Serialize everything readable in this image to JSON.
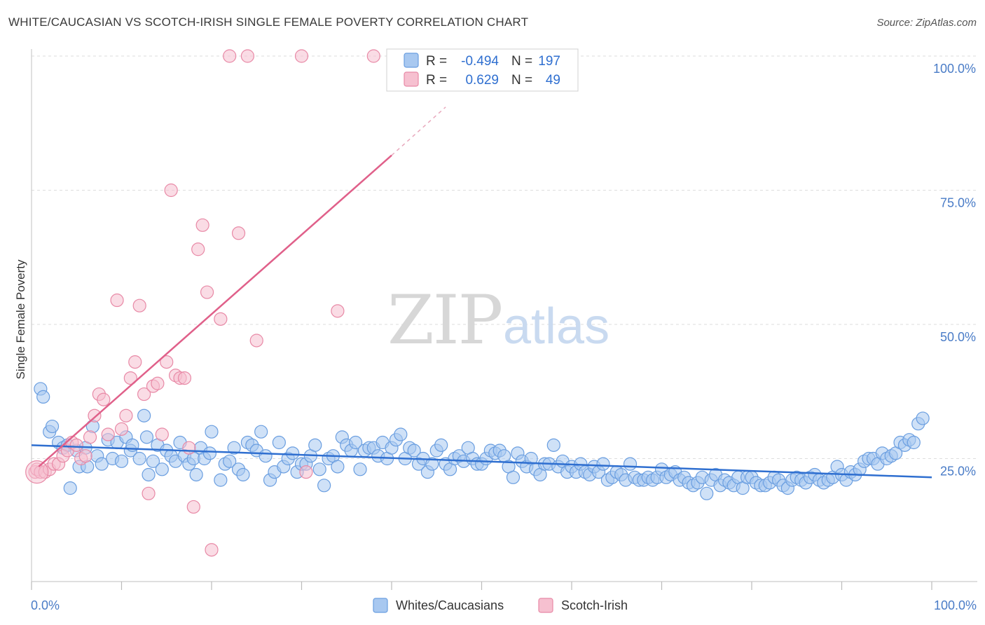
{
  "title": "WHITE/CAUCASIAN VS SCOTCH-IRISH SINGLE FEMALE POVERTY CORRELATION CHART",
  "source": "Source: ZipAtlas.com",
  "watermark": {
    "zip": "ZIP",
    "atlas": "atlas"
  },
  "chart_data": {
    "type": "scatter",
    "xlabel": "",
    "ylabel": "Single Female Poverty",
    "xlim": [
      0,
      100
    ],
    "ylim": [
      0,
      100
    ],
    "x_tick_labels": {
      "left": "0.0%",
      "right": "100.0%"
    },
    "y_tick_labels": [
      {
        "value": 25,
        "label": "25.0%"
      },
      {
        "value": 50,
        "label": "50.0%"
      },
      {
        "value": 75,
        "label": "75.0%"
      },
      {
        "value": 100,
        "label": "100.0%"
      }
    ],
    "legend": {
      "placement": "top-center",
      "entries": [
        {
          "r_label": "R =",
          "r_value": "-0.494",
          "n_label": "N =",
          "n_value": "197"
        },
        {
          "r_label": "R =",
          "r_value": "0.629",
          "n_label": "N =",
          "n_value": "49"
        }
      ]
    },
    "series": [
      {
        "name": "Whites/Caucasians",
        "color": "#6a9ee0",
        "fill": "#a8c8f0",
        "trend": {
          "x0": 0,
          "y0": 27.5,
          "x1": 100,
          "y1": 21.5
        },
        "points": [
          [
            1,
            38
          ],
          [
            1.3,
            36.5
          ],
          [
            2,
            30
          ],
          [
            2.3,
            31
          ],
          [
            3,
            28
          ],
          [
            3.5,
            27
          ],
          [
            4,
            27.5
          ],
          [
            4.3,
            19.5
          ],
          [
            5,
            26.5
          ],
          [
            5.3,
            23.5
          ],
          [
            6,
            27
          ],
          [
            6.2,
            23.5
          ],
          [
            6.8,
            31
          ],
          [
            7.3,
            25.5
          ],
          [
            7.8,
            24
          ],
          [
            8.5,
            28.5
          ],
          [
            9,
            25
          ],
          [
            9.5,
            28
          ],
          [
            10,
            24.5
          ],
          [
            10.5,
            29
          ],
          [
            11,
            26.5
          ],
          [
            11.2,
            27.5
          ],
          [
            12,
            25
          ],
          [
            12.5,
            33
          ],
          [
            12.8,
            29
          ],
          [
            13,
            22
          ],
          [
            13.5,
            24.5
          ],
          [
            14,
            27.5
          ],
          [
            14.5,
            23
          ],
          [
            15,
            26.5
          ],
          [
            15.5,
            25.5
          ],
          [
            16,
            24.5
          ],
          [
            16.5,
            28
          ],
          [
            17,
            25.5
          ],
          [
            17.5,
            24
          ],
          [
            18,
            25
          ],
          [
            18.3,
            22
          ],
          [
            18.8,
            27
          ],
          [
            19.2,
            25
          ],
          [
            19.8,
            26
          ],
          [
            20,
            30
          ],
          [
            21,
            21
          ],
          [
            21.5,
            24
          ],
          [
            22,
            24.5
          ],
          [
            22.5,
            27
          ],
          [
            23,
            23
          ],
          [
            23.5,
            22
          ],
          [
            24,
            28
          ],
          [
            24.5,
            27.5
          ],
          [
            25,
            26.5
          ],
          [
            25.5,
            30
          ],
          [
            26,
            25.5
          ],
          [
            26.5,
            21
          ],
          [
            27,
            22.5
          ],
          [
            27.5,
            28
          ],
          [
            28,
            23.5
          ],
          [
            28.5,
            25
          ],
          [
            29,
            26
          ],
          [
            29.5,
            22.5
          ],
          [
            30,
            24
          ],
          [
            30.5,
            24
          ],
          [
            31,
            25.5
          ],
          [
            31.5,
            27.5
          ],
          [
            32,
            23
          ],
          [
            32.5,
            20
          ],
          [
            33,
            25
          ],
          [
            33.5,
            25.5
          ],
          [
            34,
            23.5
          ],
          [
            34.5,
            29
          ],
          [
            35,
            27.5
          ],
          [
            35.5,
            26.5
          ],
          [
            36,
            28
          ],
          [
            36.5,
            23
          ],
          [
            37,
            26.5
          ],
          [
            37.5,
            27
          ],
          [
            38,
            27
          ],
          [
            38.5,
            25.5
          ],
          [
            39,
            28
          ],
          [
            39.5,
            25
          ],
          [
            40,
            27
          ],
          [
            40.5,
            28.5
          ],
          [
            41,
            29.5
          ],
          [
            41.5,
            25
          ],
          [
            42,
            27
          ],
          [
            42.5,
            26.5
          ],
          [
            43,
            24
          ],
          [
            43.5,
            25
          ],
          [
            44,
            22.5
          ],
          [
            44.5,
            24
          ],
          [
            45,
            26.5
          ],
          [
            45.5,
            27.5
          ],
          [
            46,
            24
          ],
          [
            46.5,
            23
          ],
          [
            47,
            25
          ],
          [
            47.5,
            25.5
          ],
          [
            48,
            24.5
          ],
          [
            48.5,
            27
          ],
          [
            49,
            25
          ],
          [
            49.5,
            24
          ],
          [
            50,
            24
          ],
          [
            50.5,
            25
          ],
          [
            51,
            26.5
          ],
          [
            51.5,
            26
          ],
          [
            52,
            26.5
          ],
          [
            52.5,
            25.5
          ],
          [
            53,
            23.5
          ],
          [
            53.5,
            21.5
          ],
          [
            54,
            26
          ],
          [
            54.5,
            24.5
          ],
          [
            55,
            23.5
          ],
          [
            55.5,
            25
          ],
          [
            56,
            23
          ],
          [
            56.5,
            22
          ],
          [
            57,
            24
          ],
          [
            57.5,
            24
          ],
          [
            58,
            27.5
          ],
          [
            58.5,
            23.5
          ],
          [
            59,
            24.5
          ],
          [
            59.5,
            22.5
          ],
          [
            60,
            23.5
          ],
          [
            60.5,
            22.5
          ],
          [
            61,
            24
          ],
          [
            61.5,
            22.5
          ],
          [
            62,
            22
          ],
          [
            62.5,
            23.5
          ],
          [
            63,
            22.5
          ],
          [
            63.5,
            24
          ],
          [
            64,
            21
          ],
          [
            64.5,
            21.5
          ],
          [
            65,
            22.5
          ],
          [
            65.5,
            22
          ],
          [
            66,
            21
          ],
          [
            66.5,
            24
          ],
          [
            67,
            21.5
          ],
          [
            67.5,
            21
          ],
          [
            68,
            21
          ],
          [
            68.5,
            21.5
          ],
          [
            69,
            21
          ],
          [
            69.5,
            21.5
          ],
          [
            70,
            23
          ],
          [
            70.5,
            21.5
          ],
          [
            71,
            22
          ],
          [
            71.5,
            22.5
          ],
          [
            72,
            21
          ],
          [
            72.5,
            21.5
          ],
          [
            73,
            20.5
          ],
          [
            73.5,
            20
          ],
          [
            74,
            20.5
          ],
          [
            74.5,
            21.5
          ],
          [
            75,
            18.5
          ],
          [
            75.5,
            21
          ],
          [
            76,
            22
          ],
          [
            76.5,
            20
          ],
          [
            77,
            21
          ],
          [
            77.5,
            20.5
          ],
          [
            78,
            20
          ],
          [
            78.5,
            21.5
          ],
          [
            79,
            19.5
          ],
          [
            79.5,
            21.5
          ],
          [
            80,
            21.5
          ],
          [
            80.5,
            20.5
          ],
          [
            81,
            20
          ],
          [
            81.5,
            20
          ],
          [
            82,
            20.5
          ],
          [
            82.5,
            21.5
          ],
          [
            83,
            21
          ],
          [
            83.5,
            20
          ],
          [
            84,
            19.5
          ],
          [
            84.5,
            21
          ],
          [
            85,
            21.5
          ],
          [
            85.5,
            21
          ],
          [
            86,
            20.5
          ],
          [
            86.5,
            21.5
          ],
          [
            87,
            22
          ],
          [
            87.5,
            21
          ],
          [
            88,
            20.5
          ],
          [
            88.5,
            21
          ],
          [
            89,
            21.5
          ],
          [
            89.5,
            23.5
          ],
          [
            90,
            22
          ],
          [
            90.5,
            21
          ],
          [
            91,
            22.5
          ],
          [
            91.5,
            22
          ],
          [
            92,
            23
          ],
          [
            92.5,
            24.5
          ],
          [
            93,
            25
          ],
          [
            93.5,
            25
          ],
          [
            94,
            24
          ],
          [
            94.5,
            26
          ],
          [
            95,
            25
          ],
          [
            95.5,
            25.5
          ],
          [
            96,
            26
          ],
          [
            96.5,
            28
          ],
          [
            97,
            27.5
          ],
          [
            97.5,
            28.5
          ],
          [
            98,
            28
          ],
          [
            98.5,
            31.5
          ],
          [
            99,
            32.5
          ]
        ]
      },
      {
        "name": "Scotch-Irish",
        "color": "#e889a6",
        "fill": "#f6c0d0",
        "trend": {
          "x0": 0.8,
          "y0": 23.5,
          "x1": 40,
          "y1": 81.5
        },
        "trend_dashed_to": {
          "x": 46,
          "y": 90.5
        },
        "points": [
          [
            0.4,
            22.5
          ],
          [
            0.6,
            23
          ],
          [
            1,
            22.5
          ],
          [
            1.5,
            22.5
          ],
          [
            2,
            23
          ],
          [
            2.5,
            24
          ],
          [
            3,
            24
          ],
          [
            3.5,
            25.5
          ],
          [
            4,
            26.5
          ],
          [
            4.5,
            28
          ],
          [
            5,
            27.5
          ],
          [
            5.5,
            25
          ],
          [
            6,
            25.5
          ],
          [
            6.5,
            29
          ],
          [
            7,
            33
          ],
          [
            7.5,
            37
          ],
          [
            8,
            36
          ],
          [
            8.5,
            29.5
          ],
          [
            9.5,
            54.5
          ],
          [
            10,
            30.5
          ],
          [
            10.5,
            33
          ],
          [
            11,
            40
          ],
          [
            11.5,
            43
          ],
          [
            12,
            53.5
          ],
          [
            12.5,
            37
          ],
          [
            13,
            18.5
          ],
          [
            13.5,
            38.5
          ],
          [
            14,
            39
          ],
          [
            14.5,
            29.5
          ],
          [
            15,
            43
          ],
          [
            15.5,
            75
          ],
          [
            16,
            40.5
          ],
          [
            16.5,
            40
          ],
          [
            17,
            40
          ],
          [
            17.5,
            27
          ],
          [
            18,
            16
          ],
          [
            18.5,
            64
          ],
          [
            19,
            68.5
          ],
          [
            19.5,
            56
          ],
          [
            20,
            8
          ],
          [
            21,
            51
          ],
          [
            22,
            100
          ],
          [
            23,
            67
          ],
          [
            24,
            100
          ],
          [
            25,
            47
          ],
          [
            30,
            100
          ],
          [
            30.5,
            22.5
          ],
          [
            34,
            52.5
          ],
          [
            38,
            100
          ]
        ]
      }
    ]
  }
}
